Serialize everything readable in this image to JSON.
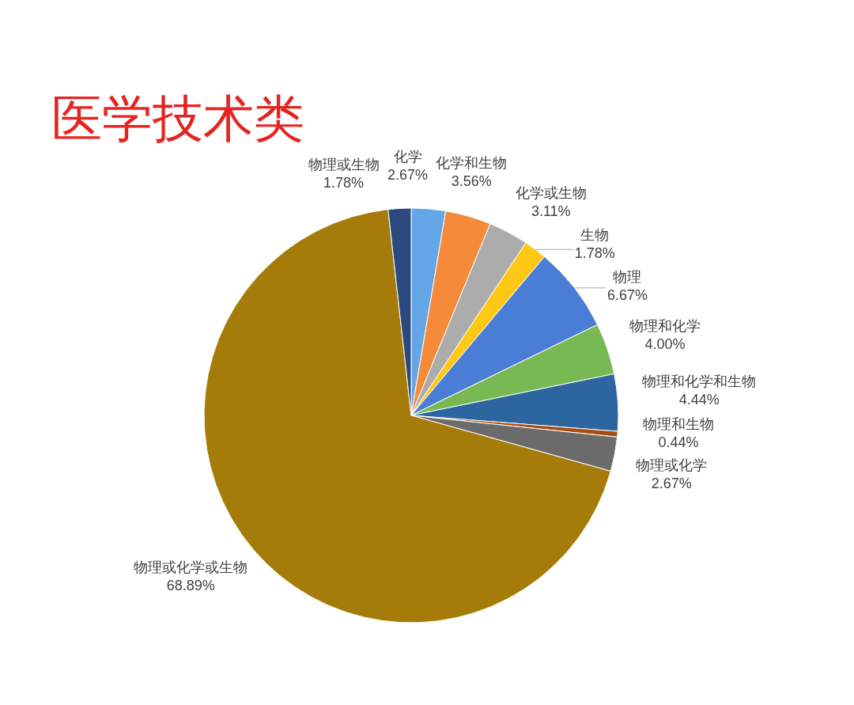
{
  "chart_data": {
    "type": "pie",
    "title": "医学技术类",
    "categories": [
      "化学",
      "化学和生物",
      "化学或生物",
      "生物",
      "物理",
      "物理和化学",
      "物理和化学和生物",
      "物理和生物",
      "物理或化学",
      "物理或化学或生物",
      "物理或生物"
    ],
    "values": [
      2.67,
      3.56,
      3.11,
      1.78,
      6.67,
      4.0,
      4.44,
      0.44,
      2.67,
      68.89,
      1.78
    ],
    "value_labels": [
      "2.67%",
      "3.56%",
      "3.11%",
      "1.78%",
      "6.67%",
      "4.00%",
      "4.44%",
      "0.44%",
      "2.67%",
      "68.89%",
      "1.78%"
    ],
    "colors": [
      "#64a6e6",
      "#f58a3a",
      "#acacac",
      "#ffc814",
      "#4a7dd6",
      "#78b954",
      "#2c65a0",
      "#a84d12",
      "#6b6b6b",
      "#a57c0a",
      "#2b4a80"
    ]
  }
}
